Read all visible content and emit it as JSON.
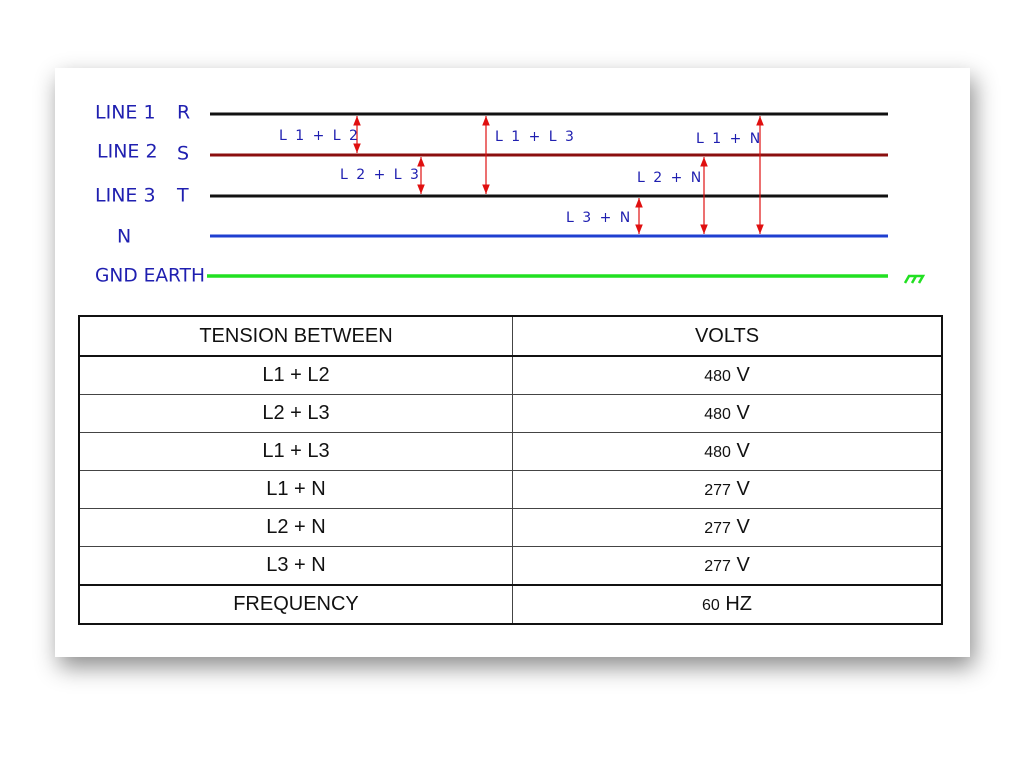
{
  "diagram": {
    "lines": [
      {
        "label": "LINE 1",
        "phase": "R"
      },
      {
        "label": "LINE 2",
        "phase": "S"
      },
      {
        "label": "LINE 3",
        "phase": "T"
      },
      {
        "label": "N"
      },
      {
        "label": "GND EARTH"
      }
    ],
    "arrows": [
      {
        "label": "L 1 + L 2"
      },
      {
        "label": "L 2 + L 3"
      },
      {
        "label": "L 1 + L 3"
      },
      {
        "label": "L 3 + N"
      },
      {
        "label": "L 2 + N"
      },
      {
        "label": "L 1 + N"
      }
    ]
  },
  "table": {
    "header": [
      "TENSION BETWEEN",
      "VOLTS"
    ],
    "rows": [
      {
        "pair": "L1 + L2",
        "value": 480,
        "unit": "V"
      },
      {
        "pair": "L2 + L3",
        "value": 480,
        "unit": "V"
      },
      {
        "pair": "L1 + L3",
        "value": 480,
        "unit": "V"
      },
      {
        "pair": "L1 + N",
        "value": 277,
        "unit": "V"
      },
      {
        "pair": "L2 + N",
        "value": 277,
        "unit": "V"
      },
      {
        "pair": "L3 + N",
        "value": 277,
        "unit": "V"
      }
    ],
    "frequency": {
      "label": "FREQUENCY",
      "value": 60,
      "unit": "HZ"
    }
  }
}
